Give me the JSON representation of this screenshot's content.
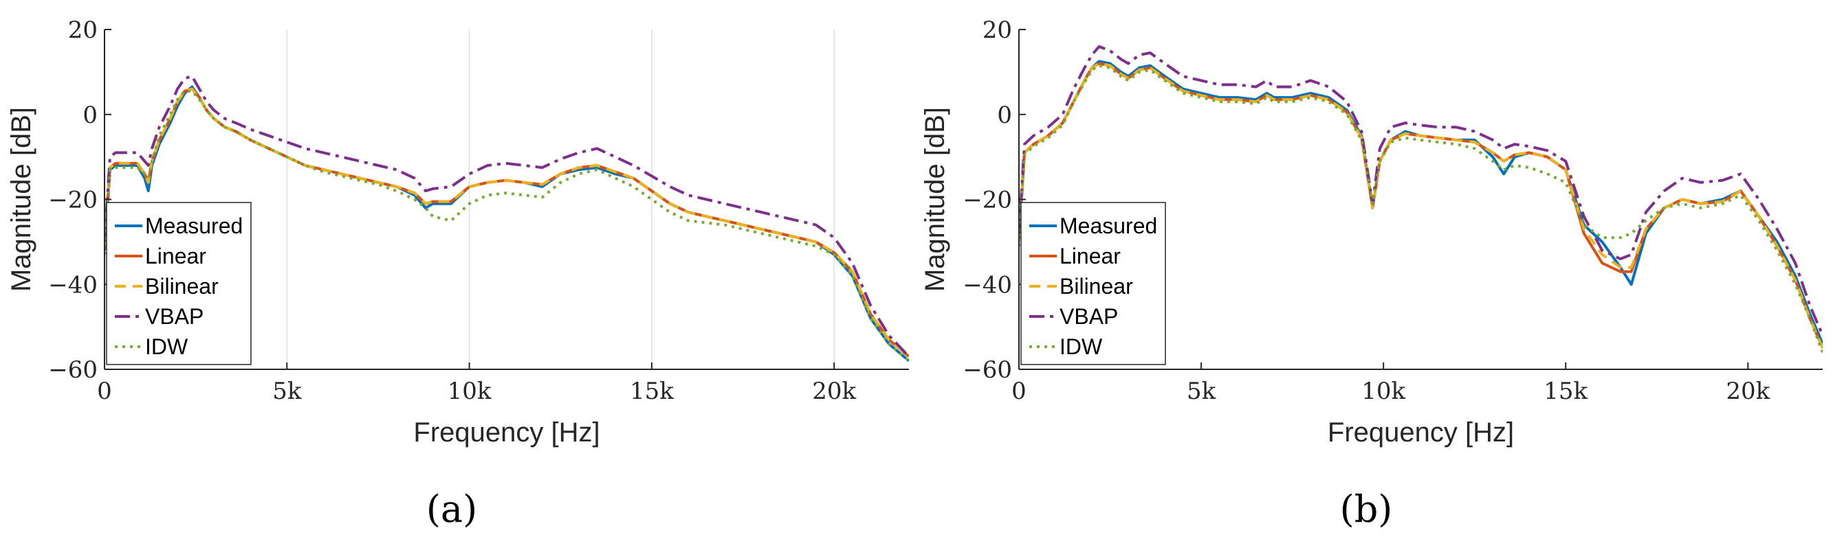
{
  "colors": {
    "measured": "#0072BD",
    "linear": "#D95319",
    "bilinear": "#EDB120",
    "vbap": "#7E2F8E",
    "idw": "#77AC30",
    "axis": "#262626",
    "grid": "#dedede"
  },
  "chart_data": [
    {
      "type": "line",
      "panel_label": "(a)",
      "xlabel": "Frequency [Hz]",
      "ylabel": "Magnitude [dB]",
      "xlim": [
        0,
        22050
      ],
      "ylim": [
        -60,
        20
      ],
      "xticks": [
        0,
        5000,
        10000,
        15000,
        20000
      ],
      "xtick_labels": [
        "0",
        "5k",
        "10k",
        "15k",
        "20k"
      ],
      "yticks": [
        20,
        0,
        -20,
        -40,
        -60
      ],
      "ytick_labels": [
        "20",
        "0",
        "−20",
        "−40",
        "−60"
      ],
      "xgrid": true,
      "legend": {
        "placement": "bottom-left",
        "entries": [
          "Measured",
          "Linear",
          "Bilinear",
          "VBAP",
          "IDW"
        ]
      },
      "x": [
        0,
        150,
        300,
        600,
        900,
        1100,
        1200,
        1300,
        1500,
        1800,
        2000,
        2200,
        2400,
        2600,
        2800,
        3000,
        3300,
        3600,
        4000,
        4500,
        5000,
        5500,
        6000,
        6500,
        7000,
        7500,
        8000,
        8500,
        8800,
        9000,
        9500,
        10000,
        10500,
        11000,
        11500,
        12000,
        12500,
        13000,
        13500,
        14000,
        14500,
        15000,
        15500,
        16000,
        16500,
        17000,
        17500,
        18000,
        18500,
        19000,
        19500,
        20000,
        20500,
        21000,
        21500,
        22050
      ],
      "series": [
        {
          "name": "Measured",
          "values": [
            -32,
            -13,
            -12,
            -12,
            -12,
            -15,
            -18,
            -12,
            -7,
            -2,
            2,
            5,
            6.5,
            4,
            1,
            -1,
            -3,
            -4,
            -6,
            -8,
            -10,
            -12,
            -13,
            -14,
            -15,
            -16,
            -17,
            -19,
            -22,
            -21,
            -21,
            -17,
            -16,
            -15.5,
            -16,
            -17,
            -14,
            -13,
            -12.5,
            -14,
            -15,
            -18,
            -21,
            -23,
            -24,
            -25,
            -26,
            -27,
            -28,
            -29,
            -30,
            -33,
            -38,
            -48,
            -54,
            -58
          ]
        },
        {
          "name": "Linear",
          "values": [
            -31,
            -12.5,
            -11.5,
            -11.5,
            -11.5,
            -14,
            -16,
            -11,
            -6,
            -1,
            3,
            5.5,
            6,
            4,
            1,
            -1,
            -3,
            -4,
            -6,
            -8,
            -10,
            -12,
            -13,
            -14,
            -15,
            -16,
            -17,
            -18.5,
            -21,
            -20.5,
            -20.5,
            -17,
            -16,
            -15.5,
            -16,
            -16.5,
            -14,
            -12.5,
            -12,
            -13.5,
            -15,
            -18,
            -21,
            -23,
            -24,
            -25,
            -26,
            -27,
            -28,
            -29,
            -30,
            -32.5,
            -37,
            -47,
            -53,
            -57
          ]
        },
        {
          "name": "Bilinear",
          "values": [
            -31,
            -12.5,
            -11.5,
            -11.5,
            -11.5,
            -14,
            -16,
            -11,
            -6,
            -1,
            3,
            5.5,
            6,
            4,
            1,
            -1,
            -3,
            -4,
            -6,
            -8,
            -10,
            -12,
            -13,
            -14,
            -15,
            -16,
            -17,
            -18.5,
            -21,
            -20.5,
            -20.5,
            -17,
            -16,
            -15.5,
            -16,
            -16.5,
            -14,
            -12.5,
            -12,
            -13.5,
            -15,
            -18,
            -21,
            -23,
            -24,
            -25,
            -26,
            -27,
            -28,
            -29,
            -30,
            -32.5,
            -37,
            -47,
            -53,
            -57
          ]
        },
        {
          "name": "VBAP",
          "values": [
            -30,
            -10,
            -9,
            -9,
            -9,
            -11,
            -12,
            -8,
            -3,
            2,
            6,
            8.5,
            9,
            6,
            3,
            1,
            -1,
            -2,
            -3.5,
            -5,
            -6.5,
            -8,
            -9,
            -10,
            -11,
            -12,
            -13,
            -15,
            -18,
            -17.5,
            -17,
            -14,
            -12,
            -11.5,
            -12,
            -12.5,
            -10.5,
            -9,
            -8,
            -10,
            -12,
            -14.5,
            -17,
            -19,
            -20,
            -21,
            -22,
            -23,
            -24,
            -25,
            -26,
            -29,
            -35,
            -45,
            -52,
            -57
          ]
        },
        {
          "name": "IDW",
          "values": [
            -33,
            -13,
            -12.5,
            -12.5,
            -12.5,
            -14,
            -15,
            -11,
            -5,
            0,
            3.5,
            5.5,
            5.5,
            3.5,
            1,
            -1,
            -3,
            -4,
            -6,
            -8,
            -10,
            -12,
            -13.5,
            -14.5,
            -15.5,
            -16.5,
            -18,
            -20,
            -22,
            -24,
            -25,
            -21,
            -19,
            -18.5,
            -19,
            -19.5,
            -16,
            -14,
            -13,
            -15,
            -17,
            -20,
            -23,
            -25,
            -25.5,
            -26,
            -27,
            -28,
            -29,
            -30,
            -31,
            -33,
            -38,
            -48,
            -54,
            -58
          ]
        }
      ]
    },
    {
      "type": "line",
      "panel_label": "(b)",
      "xlabel": "Frequency [Hz]",
      "ylabel": "Magnitude [dB]",
      "xlim": [
        0,
        22050
      ],
      "ylim": [
        -60,
        20
      ],
      "xticks": [
        0,
        5000,
        10000,
        15000,
        20000
      ],
      "xtick_labels": [
        "0",
        "5k",
        "10k",
        "15k",
        "20k"
      ],
      "yticks": [
        20,
        0,
        -20,
        -40,
        -60
      ],
      "ytick_labels": [
        "20",
        "0",
        "−20",
        "−40",
        "−60"
      ],
      "xgrid": false,
      "legend": {
        "placement": "bottom-left",
        "entries": [
          "Measured",
          "Linear",
          "Bilinear",
          "VBAP",
          "IDW"
        ]
      },
      "x": [
        0,
        150,
        400,
        800,
        1200,
        1500,
        1800,
        2000,
        2200,
        2500,
        2800,
        3000,
        3300,
        3600,
        4000,
        4500,
        5000,
        5500,
        6000,
        6500,
        6800,
        7000,
        7500,
        8000,
        8500,
        9000,
        9400,
        9700,
        9900,
        10200,
        10600,
        11000,
        11500,
        12000,
        12500,
        13000,
        13300,
        13600,
        14000,
        14500,
        15000,
        15500,
        16000,
        16500,
        16800,
        17200,
        17700,
        18200,
        18700,
        19300,
        19800,
        20300,
        20800,
        21300,
        21700,
        22050
      ],
      "series": [
        {
          "name": "Measured",
          "values": [
            -30,
            -9,
            -7,
            -5,
            -2,
            3,
            8,
            11,
            12.5,
            12,
            10,
            9,
            11,
            11.5,
            9,
            6,
            5,
            4,
            4,
            3.5,
            5,
            4,
            4,
            5,
            4,
            1,
            -5,
            -22,
            -11,
            -6,
            -4,
            -5,
            -5.5,
            -6,
            -6,
            -10,
            -14,
            -10,
            -9,
            -10,
            -13,
            -26,
            -30,
            -36,
            -40,
            -28,
            -22,
            -20,
            -21,
            -20,
            -18,
            -24,
            -30,
            -38,
            -47,
            -54
          ]
        },
        {
          "name": "Linear",
          "values": [
            -30,
            -9,
            -7,
            -5,
            -2,
            3,
            8,
            11,
            12,
            11.5,
            9.5,
            8.5,
            10.5,
            11,
            8.5,
            5.5,
            4.5,
            3.5,
            3.5,
            3,
            4.5,
            3.5,
            3.5,
            4.5,
            3.5,
            0.5,
            -5.5,
            -22,
            -11,
            -6,
            -4.5,
            -5,
            -5.5,
            -6,
            -6.5,
            -9,
            -11,
            -9.5,
            -9,
            -10,
            -13,
            -28,
            -35,
            -37,
            -37,
            -27,
            -22,
            -20,
            -21,
            -20.5,
            -18,
            -24,
            -31,
            -39,
            -48,
            -55
          ]
        },
        {
          "name": "Bilinear",
          "values": [
            -30,
            -9,
            -7,
            -5,
            -2,
            3,
            8,
            11,
            12,
            11.5,
            9.5,
            8.5,
            10.5,
            11,
            8.5,
            5.5,
            4.5,
            3.5,
            3.5,
            3,
            4.5,
            3.5,
            3.5,
            4.5,
            3.5,
            0.5,
            -5.5,
            -22,
            -11,
            -6,
            -4.5,
            -5,
            -5.5,
            -6,
            -6.5,
            -9,
            -11,
            -9.5,
            -9,
            -10,
            -13,
            -27,
            -33,
            -36,
            -36,
            -27,
            -22,
            -20,
            -21,
            -20.5,
            -18,
            -24,
            -31,
            -39,
            -48,
            -55
          ]
        },
        {
          "name": "VBAP",
          "values": [
            -28,
            -7,
            -5,
            -3,
            0,
            6,
            11,
            14,
            16,
            15,
            13,
            12,
            14,
            14.5,
            12,
            9,
            8,
            7,
            7,
            6.5,
            8,
            6.5,
            6.5,
            8,
            6.5,
            3,
            -4,
            -21,
            -8,
            -3,
            -2,
            -2.5,
            -3,
            -3,
            -4,
            -6,
            -8,
            -7,
            -7.5,
            -8.5,
            -11,
            -24,
            -32,
            -34,
            -33,
            -23,
            -18,
            -15,
            -16,
            -15.5,
            -14,
            -20,
            -27,
            -35,
            -45,
            -52
          ]
        },
        {
          "name": "IDW",
          "values": [
            -31,
            -9.5,
            -7.5,
            -5.5,
            -2.5,
            3,
            7.5,
            10.5,
            11.5,
            11,
            9,
            8,
            10,
            10.5,
            8,
            5,
            4,
            3,
            3,
            2.5,
            4,
            3,
            3,
            4,
            3,
            0,
            -6,
            -21,
            -11,
            -6.5,
            -5.5,
            -6,
            -6.5,
            -7,
            -8,
            -11,
            -13,
            -12,
            -12.5,
            -14,
            -16,
            -26,
            -29,
            -29,
            -28,
            -25,
            -22,
            -21,
            -22,
            -21,
            -19,
            -25,
            -32,
            -40,
            -48,
            -56
          ]
        }
      ]
    }
  ]
}
